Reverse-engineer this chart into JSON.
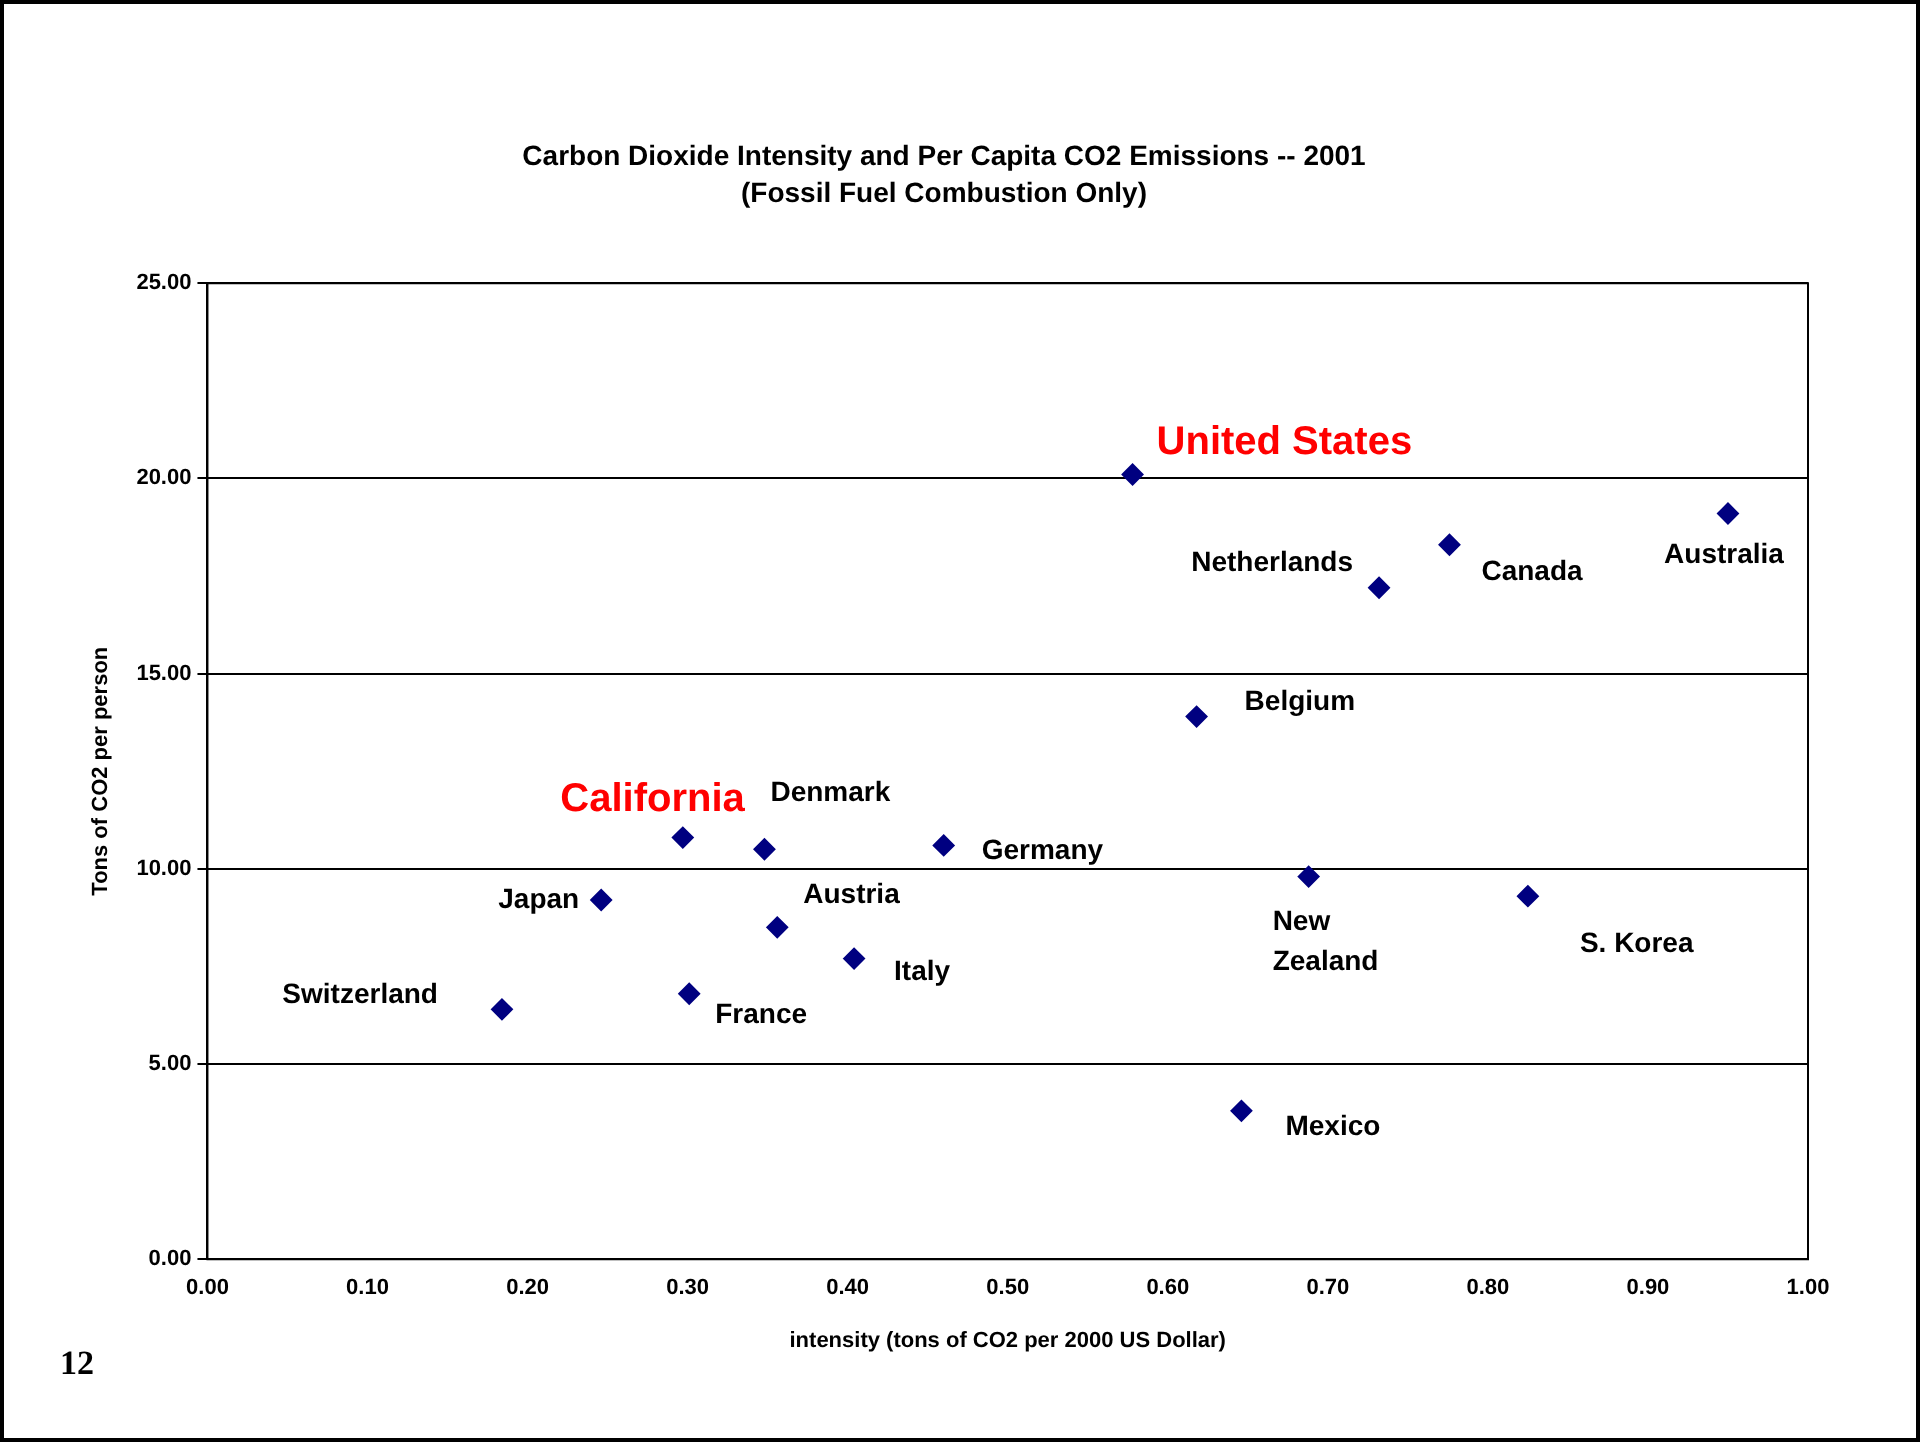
{
  "chart_data": {
    "type": "scatter",
    "title": "Carbon Dioxide Intensity and Per Capita CO2 Emissions -- 2001",
    "subtitle": "(Fossil Fuel Combustion Only)",
    "xlabel": "intensity (tons of CO2 per 2000 US Dollar)",
    "ylabel": "Tons of CO2 per person",
    "xlim": [
      0,
      1
    ],
    "ylim": [
      0,
      25
    ],
    "xticks": [
      {
        "value": 0,
        "label": "0.00"
      },
      {
        "value": 0.1,
        "label": "0.10"
      },
      {
        "value": 0.2,
        "label": "0.20"
      },
      {
        "value": 0.3,
        "label": "0.30"
      },
      {
        "value": 0.4,
        "label": "0.40"
      },
      {
        "value": 0.5,
        "label": "0.50"
      },
      {
        "value": 0.6,
        "label": "0.60"
      },
      {
        "value": 0.7,
        "label": "0.70"
      },
      {
        "value": 0.8,
        "label": "0.80"
      },
      {
        "value": 0.9,
        "label": "0.90"
      },
      {
        "value": 1,
        "label": "1.00"
      }
    ],
    "yticks": [
      {
        "value": 0,
        "label": "0.00"
      },
      {
        "value": 5,
        "label": "5.00"
      },
      {
        "value": 10,
        "label": "10.00"
      },
      {
        "value": 15,
        "label": "15.00"
      },
      {
        "value": 20,
        "label": "20.00"
      },
      {
        "value": 25,
        "label": "25.00"
      }
    ],
    "grid": "y",
    "legend": false,
    "marker": "diamond",
    "series": [
      {
        "name": "United States",
        "color": "#000080",
        "x": [
          0.578
        ],
        "values": [
          20.1
        ]
      },
      {
        "name": "Netherlands",
        "color": "#000080",
        "x": [
          0.732
        ],
        "values": [
          17.2
        ]
      },
      {
        "name": "Canada",
        "color": "#000080",
        "x": [
          0.776
        ],
        "values": [
          18.3
        ]
      },
      {
        "name": "Australia",
        "color": "#000080",
        "x": [
          0.95
        ],
        "values": [
          19.1
        ]
      },
      {
        "name": "Belgium",
        "color": "#000080",
        "x": [
          0.618
        ],
        "values": [
          13.9
        ]
      },
      {
        "name": "California",
        "color": "#000080",
        "x": [
          0.297
        ],
        "values": [
          10.8
        ]
      },
      {
        "name": "Denmark",
        "color": "#000080",
        "x": [
          0.348
        ],
        "values": [
          10.5
        ]
      },
      {
        "name": "Germany",
        "color": "#000080",
        "x": [
          0.46
        ],
        "values": [
          10.6
        ]
      },
      {
        "name": "Japan",
        "color": "#000080",
        "x": [
          0.246
        ],
        "values": [
          9.2
        ]
      },
      {
        "name": "Austria",
        "color": "#000080",
        "x": [
          0.356
        ],
        "values": [
          8.5
        ]
      },
      {
        "name": "Italy",
        "color": "#000080",
        "x": [
          0.404
        ],
        "values": [
          7.7
        ]
      },
      {
        "name": "Switzerland",
        "color": "#000080",
        "x": [
          0.184
        ],
        "values": [
          6.4
        ]
      },
      {
        "name": "France",
        "color": "#000080",
        "x": [
          0.301
        ],
        "values": [
          6.8
        ]
      },
      {
        "name": "New Zealand",
        "color": "#000080",
        "x": [
          0.688
        ],
        "values": [
          9.8
        ]
      },
      {
        "name": "S. Korea",
        "color": "#000080",
        "x": [
          0.825
        ],
        "values": [
          9.3
        ]
      },
      {
        "name": "Mexico",
        "color": "#000080",
        "x": [
          0.646
        ],
        "values": [
          3.8
        ]
      }
    ],
    "annotations": [
      "12"
    ]
  }
}
